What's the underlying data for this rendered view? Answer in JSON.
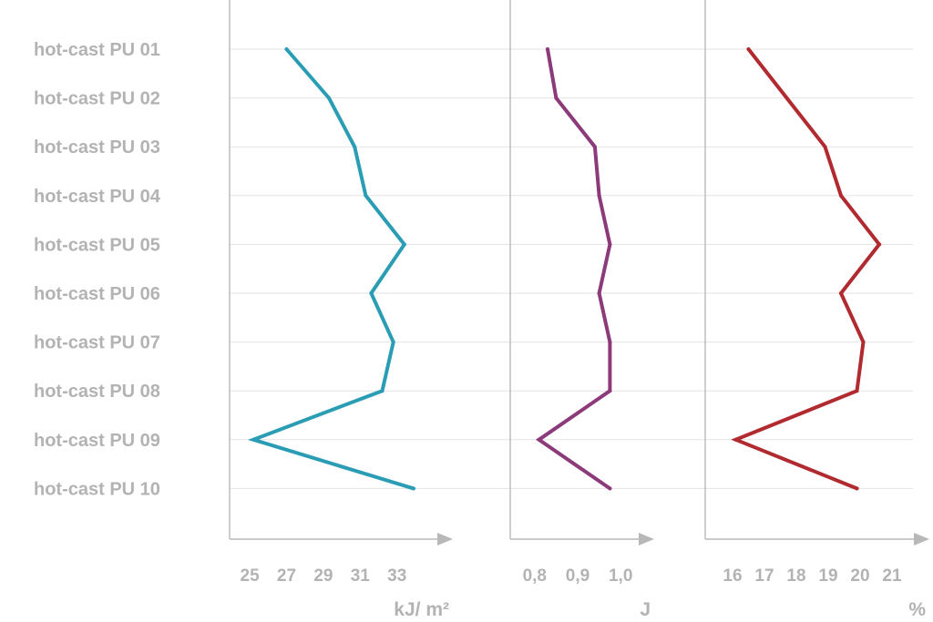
{
  "chart_data": {
    "type": "line",
    "orientation": "horizontal-values",
    "categories": [
      "hot-cast PU  01",
      "hot-cast PU  02",
      "hot-cast PU  03",
      "hot-cast PU  04",
      "hot-cast PU  05",
      "hot-cast PU  06",
      "hot-cast PU  07",
      "hot-cast PU  08",
      "hot-cast PU  09",
      "hot-cast PU  10"
    ],
    "grid": true,
    "panels": [
      {
        "unit": "kJ/ m²",
        "color": "#2a9db5",
        "xlim": [
          24.5,
          34.5
        ],
        "ticks": [
          25,
          27,
          29,
          31,
          33
        ],
        "tick_labels": [
          "25",
          "27",
          "29",
          "31",
          "33"
        ],
        "values": [
          27.0,
          29.3,
          30.7,
          31.3,
          33.4,
          31.6,
          32.8,
          32.2,
          25.2,
          33.9
        ]
      },
      {
        "unit": "J",
        "color": "#8c3a7a",
        "xlim": [
          0.775,
          1.025
        ],
        "ticks": [
          0.8,
          0.9,
          1.0
        ],
        "tick_labels": [
          "0,8",
          "0,9",
          "1,0"
        ],
        "values": [
          0.83,
          0.85,
          0.94,
          0.95,
          0.975,
          0.95,
          0.975,
          0.975,
          0.81,
          0.975
        ]
      },
      {
        "unit": "%",
        "color": "#b02a2f",
        "xlim": [
          15.6,
          21.4
        ],
        "ticks": [
          16,
          17,
          18,
          19,
          20,
          21
        ],
        "tick_labels": [
          "16",
          "17",
          "18",
          "19",
          "20",
          "21"
        ],
        "values": [
          16.5,
          17.7,
          18.9,
          19.4,
          20.6,
          19.4,
          20.1,
          19.9,
          16.1,
          19.9
        ]
      }
    ]
  }
}
